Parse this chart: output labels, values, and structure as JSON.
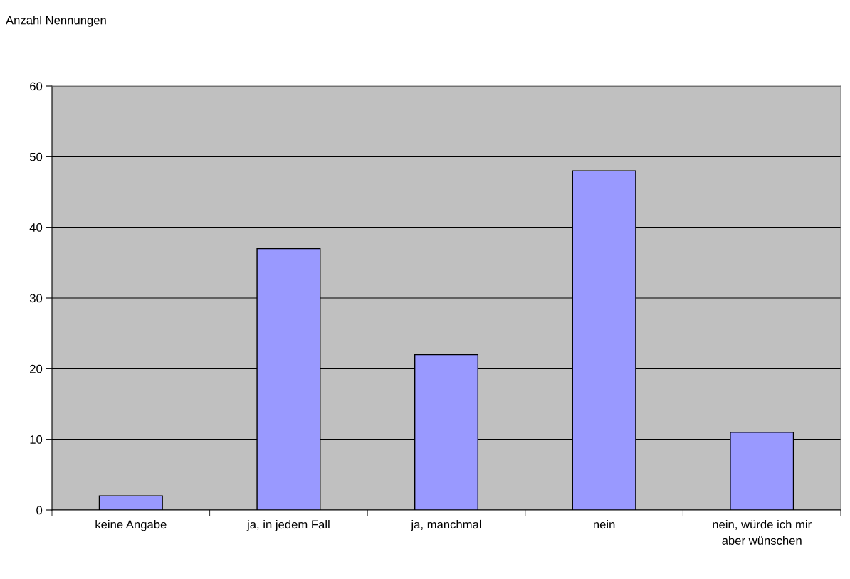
{
  "chart_data": {
    "type": "bar",
    "ylabel": "Anzahl Nennungen",
    "categories": [
      "keine Angabe",
      "ja, in jedem Fall",
      "ja, manchmal",
      "nein",
      "nein, würde ich mir\naber wünschen"
    ],
    "values": [
      2,
      37,
      22,
      48,
      11
    ],
    "color": "#9999ff",
    "ylim": [
      0,
      60
    ],
    "yticks": [
      0,
      10,
      20,
      30,
      40,
      50,
      60
    ],
    "grid": "y",
    "legend": false
  }
}
